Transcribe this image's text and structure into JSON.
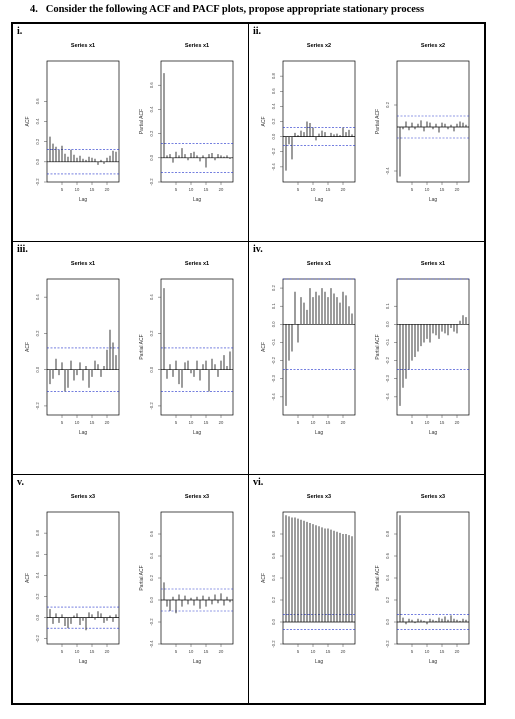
{
  "question": {
    "number": "4.",
    "text": "Consider the following ACF and PACF plots, propose appropriate stationary process"
  },
  "colors": {
    "bar": "#222222",
    "ci": "#2233cc",
    "zero": "#000000"
  },
  "panels": [
    {
      "label": "i.",
      "charts": [
        {
          "title": "Series x1",
          "ylabel": "ACF",
          "xlabel": "Lag"
        },
        {
          "title": "Series x1",
          "ylabel": "Partial ACF",
          "xlabel": "Lag"
        }
      ]
    },
    {
      "label": "ii.",
      "charts": [
        {
          "title": "Series x2",
          "ylabel": "ACF",
          "xlabel": "Lag"
        },
        {
          "title": "Series x2",
          "ylabel": "Partial ACF",
          "xlabel": "Lag"
        }
      ]
    },
    {
      "label": "iii.",
      "charts": [
        {
          "title": "Series x1",
          "ylabel": "ACF",
          "xlabel": "Lag"
        },
        {
          "title": "Series x1",
          "ylabel": "Partial ACF",
          "xlabel": "Lag"
        }
      ]
    },
    {
      "label": "iv.",
      "charts": [
        {
          "title": "Series x1",
          "ylabel": "ACF",
          "xlabel": "Lag"
        },
        {
          "title": "Series x1",
          "ylabel": "Partial ACF",
          "xlabel": "Lag"
        }
      ]
    },
    {
      "label": "v.",
      "charts": [
        {
          "title": "Series x3",
          "ylabel": "ACF",
          "xlabel": "Lag"
        },
        {
          "title": "Series x3",
          "ylabel": "Partial ACF",
          "xlabel": "Lag"
        }
      ]
    },
    {
      "label": "vi.",
      "charts": [
        {
          "title": "Series x3",
          "ylabel": "ACF",
          "xlabel": "Lag"
        },
        {
          "title": "Series x3",
          "ylabel": "Partial ACF",
          "xlabel": "Lag"
        }
      ]
    }
  ],
  "chart_data": [
    {
      "type": "bar",
      "panel": "i.",
      "title": "Series x1",
      "ylabel": "ACF",
      "xlabel": "Lag",
      "x": [
        1,
        2,
        3,
        4,
        5,
        6,
        7,
        8,
        9,
        10,
        11,
        12,
        13,
        14,
        15,
        16,
        17,
        18,
        19,
        20,
        21,
        22,
        23
      ],
      "values": [
        0.25,
        0.18,
        0.15,
        0.12,
        0.16,
        0.08,
        0.05,
        0.12,
        0.07,
        0.04,
        0.06,
        0.03,
        0.02,
        0.05,
        0.04,
        0.03,
        -0.03,
        0.02,
        -0.02,
        0.04,
        0.06,
        0.11,
        0.1
      ],
      "ci": 0.12,
      "ylim": [
        -0.2,
        1.0
      ],
      "yticks": [
        -0.2,
        0.0,
        0.2,
        0.4,
        0.6
      ],
      "xticks": [
        5,
        10,
        15,
        20
      ]
    },
    {
      "type": "bar",
      "panel": "i.",
      "title": "Series x1",
      "ylabel": "Partial ACF",
      "xlabel": "Lag",
      "x": [
        1,
        2,
        3,
        4,
        5,
        6,
        7,
        8,
        9,
        10,
        11,
        12,
        13,
        14,
        15,
        16,
        17,
        18,
        19,
        20,
        21,
        22,
        23
      ],
      "values": [
        0.7,
        0.02,
        0.03,
        -0.04,
        0.05,
        0.02,
        0.08,
        0.03,
        -0.02,
        0.04,
        0.05,
        0.02,
        -0.03,
        0.02,
        -0.08,
        0.03,
        0.04,
        -0.02,
        0.03,
        0.02,
        0.01,
        0.02,
        -0.01
      ],
      "ci": 0.12,
      "ylim": [
        -0.2,
        0.8
      ],
      "yticks": [
        -0.2,
        0.0,
        0.2,
        0.4,
        0.6
      ],
      "xticks": [
        5,
        10,
        15,
        20
      ]
    },
    {
      "type": "bar",
      "panel": "ii.",
      "title": "Series x2",
      "ylabel": "ACF",
      "xlabel": "Lag",
      "x": [
        1,
        2,
        3,
        4,
        5,
        6,
        7,
        8,
        9,
        10,
        11,
        12,
        13,
        14,
        15,
        16,
        17,
        18,
        19,
        20,
        21,
        22,
        23
      ],
      "values": [
        -0.45,
        -0.1,
        -0.3,
        0.05,
        0.02,
        0.08,
        0.06,
        0.2,
        0.18,
        0.12,
        -0.05,
        0.04,
        0.08,
        0.06,
        0.0,
        0.05,
        0.03,
        0.04,
        0.02,
        0.12,
        0.06,
        0.09,
        0.03
      ],
      "ci": 0.12,
      "ylim": [
        -0.6,
        1.0
      ],
      "yticks": [
        -0.4,
        -0.2,
        0.0,
        0.2,
        0.4,
        0.6,
        0.8
      ],
      "xticks": [
        5,
        10,
        15,
        20
      ]
    },
    {
      "type": "bar",
      "panel": "ii.",
      "title": "Series x2",
      "ylabel": "Partial ACF",
      "xlabel": "Lag",
      "x": [
        1,
        2,
        3,
        4,
        5,
        6,
        7,
        8,
        9,
        10,
        11,
        12,
        13,
        14,
        15,
        16,
        17,
        18,
        19,
        20,
        21,
        22,
        23
      ],
      "values": [
        -0.45,
        -0.02,
        0.05,
        -0.03,
        0.04,
        -0.02,
        0.03,
        0.06,
        -0.04,
        0.05,
        0.04,
        -0.02,
        0.03,
        -0.05,
        0.04,
        0.03,
        -0.02,
        0.02,
        -0.04,
        0.03,
        0.05,
        0.04,
        0.02
      ],
      "ci": 0.1,
      "ylim": [
        -0.5,
        0.6
      ],
      "yticks": [
        -0.4,
        0.2
      ],
      "xticks": [
        5,
        10,
        15,
        20
      ]
    },
    {
      "type": "bar",
      "panel": "iii.",
      "title": "Series x1",
      "ylabel": "ACF",
      "xlabel": "Lag",
      "x": [
        1,
        2,
        3,
        4,
        5,
        6,
        7,
        8,
        9,
        10,
        11,
        12,
        13,
        14,
        15,
        16,
        17,
        18,
        19,
        20,
        21,
        22,
        23
      ],
      "values": [
        -0.08,
        -0.05,
        0.06,
        -0.03,
        0.04,
        -0.12,
        -0.1,
        0.05,
        -0.06,
        -0.03,
        0.04,
        -0.06,
        0.02,
        -0.1,
        -0.04,
        0.05,
        0.03,
        -0.04,
        0.02,
        0.11,
        0.22,
        0.15,
        0.08
      ],
      "ci": 0.12,
      "ylim": [
        -0.25,
        0.5
      ],
      "yticks": [
        -0.2,
        0.0,
        0.2,
        0.4
      ],
      "xticks": [
        5,
        10,
        15,
        20
      ]
    },
    {
      "type": "bar",
      "panel": "iii.",
      "title": "Series x1",
      "ylabel": "Partial ACF",
      "xlabel": "Lag",
      "x": [
        1,
        2,
        3,
        4,
        5,
        6,
        7,
        8,
        9,
        10,
        11,
        12,
        13,
        14,
        15,
        16,
        17,
        18,
        19,
        20,
        21,
        22,
        23
      ],
      "values": [
        0.45,
        -0.05,
        0.03,
        -0.04,
        0.05,
        -0.08,
        -0.1,
        0.04,
        0.05,
        -0.02,
        -0.04,
        0.05,
        -0.06,
        0.03,
        0.05,
        -0.12,
        0.06,
        0.03,
        -0.04,
        0.05,
        0.08,
        0.02,
        0.1
      ],
      "ci": 0.12,
      "ylim": [
        -0.25,
        0.5
      ],
      "yticks": [
        -0.2,
        0.0,
        0.2,
        0.4
      ],
      "xticks": [
        5,
        10,
        15,
        20
      ]
    },
    {
      "type": "bar",
      "panel": "iv.",
      "title": "Series x1",
      "ylabel": "ACF",
      "xlabel": "Lag",
      "x": [
        1,
        2,
        3,
        4,
        5,
        6,
        7,
        8,
        9,
        10,
        11,
        12,
        13,
        14,
        15,
        16,
        17,
        18,
        19,
        20,
        21,
        22,
        23
      ],
      "values": [
        -0.45,
        -0.2,
        -0.15,
        0.18,
        -0.1,
        0.15,
        0.12,
        0.08,
        0.2,
        0.15,
        0.18,
        0.16,
        0.2,
        0.18,
        0.15,
        0.2,
        0.17,
        0.15,
        0.12,
        0.18,
        0.16,
        0.1,
        0.06
      ],
      "ci": 0.25,
      "ylim": [
        -0.5,
        0.25
      ],
      "yticks": [
        -0.4,
        -0.3,
        -0.2,
        -0.1,
        0.0,
        0.1,
        0.2
      ],
      "xticks": [
        5,
        10,
        15,
        20
      ]
    },
    {
      "type": "bar",
      "panel": "iv.",
      "title": "Series x1",
      "ylabel": "Partial ACF",
      "xlabel": "Lag",
      "x": [
        1,
        2,
        3,
        4,
        5,
        6,
        7,
        8,
        9,
        10,
        11,
        12,
        13,
        14,
        15,
        16,
        17,
        18,
        19,
        20,
        21,
        22,
        23
      ],
      "values": [
        -0.45,
        -0.35,
        -0.3,
        -0.25,
        -0.2,
        -0.18,
        -0.15,
        -0.12,
        -0.1,
        -0.08,
        -0.1,
        -0.05,
        -0.06,
        -0.08,
        -0.04,
        -0.05,
        -0.06,
        -0.02,
        -0.04,
        -0.05,
        0.02,
        0.05,
        0.04
      ],
      "ci": 0.25,
      "ylim": [
        -0.5,
        0.25
      ],
      "yticks": [
        -0.4,
        -0.3,
        -0.2,
        -0.1,
        0.0,
        0.1
      ],
      "xticks": [
        5,
        10,
        15,
        20
      ]
    },
    {
      "type": "bar",
      "panel": "v.",
      "title": "Series x3",
      "ylabel": "ACF",
      "xlabel": "Lag",
      "x": [
        1,
        2,
        3,
        4,
        5,
        6,
        7,
        8,
        9,
        10,
        11,
        12,
        13,
        14,
        15,
        16,
        17,
        18,
        19,
        20,
        21,
        22,
        23
      ],
      "values": [
        0.08,
        -0.06,
        0.04,
        -0.05,
        0.03,
        -0.08,
        -0.1,
        -0.06,
        0.02,
        0.04,
        -0.07,
        -0.03,
        -0.12,
        0.05,
        0.03,
        -0.02,
        0.06,
        0.04,
        -0.05,
        -0.03,
        0.02,
        -0.04,
        0.03
      ],
      "ci": 0.1,
      "ylim": [
        -0.25,
        1.0
      ],
      "yticks": [
        -0.2,
        0.0,
        0.2,
        0.4,
        0.6,
        0.8
      ],
      "xticks": [
        5,
        10,
        15,
        20
      ]
    },
    {
      "type": "bar",
      "panel": "v.",
      "title": "Series x3",
      "ylabel": "Partial ACF",
      "xlabel": "Lag",
      "x": [
        1,
        2,
        3,
        4,
        5,
        6,
        7,
        8,
        9,
        10,
        11,
        12,
        13,
        14,
        15,
        16,
        17,
        18,
        19,
        20,
        21,
        22,
        23
      ],
      "values": [
        0.16,
        -0.06,
        -0.1,
        0.03,
        -0.12,
        0.05,
        -0.06,
        0.04,
        -0.04,
        0.02,
        -0.05,
        0.03,
        -0.08,
        0.04,
        -0.06,
        0.03,
        -0.04,
        0.05,
        -0.03,
        0.06,
        -0.05,
        0.03,
        -0.02
      ],
      "ci": 0.1,
      "ylim": [
        -0.4,
        0.8
      ],
      "yticks": [
        -0.4,
        -0.2,
        0.0,
        0.2,
        0.4,
        0.6
      ],
      "xticks": [
        5,
        10,
        15,
        20
      ]
    },
    {
      "type": "bar",
      "panel": "vi.",
      "title": "Series x3",
      "ylabel": "ACF",
      "xlabel": "Lag",
      "x": [
        1,
        2,
        3,
        4,
        5,
        6,
        7,
        8,
        9,
        10,
        11,
        12,
        13,
        14,
        15,
        16,
        17,
        18,
        19,
        20,
        21,
        22,
        23
      ],
      "values": [
        0.97,
        0.96,
        0.95,
        0.95,
        0.94,
        0.93,
        0.92,
        0.91,
        0.9,
        0.89,
        0.88,
        0.87,
        0.86,
        0.85,
        0.85,
        0.84,
        0.83,
        0.82,
        0.81,
        0.8,
        0.8,
        0.79,
        0.78
      ],
      "ci": 0.07,
      "ylim": [
        -0.2,
        1.0
      ],
      "yticks": [
        -0.2,
        0.0,
        0.2,
        0.4,
        0.6,
        0.8
      ],
      "xticks": [
        5,
        10,
        15,
        20
      ]
    },
    {
      "type": "bar",
      "panel": "vi.",
      "title": "Series x3",
      "ylabel": "Partial ACF",
      "xlabel": "Lag",
      "x": [
        1,
        2,
        3,
        4,
        5,
        6,
        7,
        8,
        9,
        10,
        11,
        12,
        13,
        14,
        15,
        16,
        17,
        18,
        19,
        20,
        21,
        22,
        23
      ],
      "values": [
        0.97,
        0.04,
        -0.02,
        0.03,
        0.02,
        -0.01,
        0.03,
        0.02,
        0.01,
        -0.02,
        0.03,
        0.02,
        0.01,
        0.04,
        0.03,
        0.05,
        0.02,
        0.06,
        0.03,
        0.02,
        0.01,
        0.03,
        0.02
      ],
      "ci": 0.07,
      "ylim": [
        -0.2,
        1.0
      ],
      "yticks": [
        -0.2,
        0.0,
        0.2,
        0.4,
        0.6,
        0.8
      ],
      "xticks": [
        5,
        10,
        15,
        20
      ]
    }
  ]
}
